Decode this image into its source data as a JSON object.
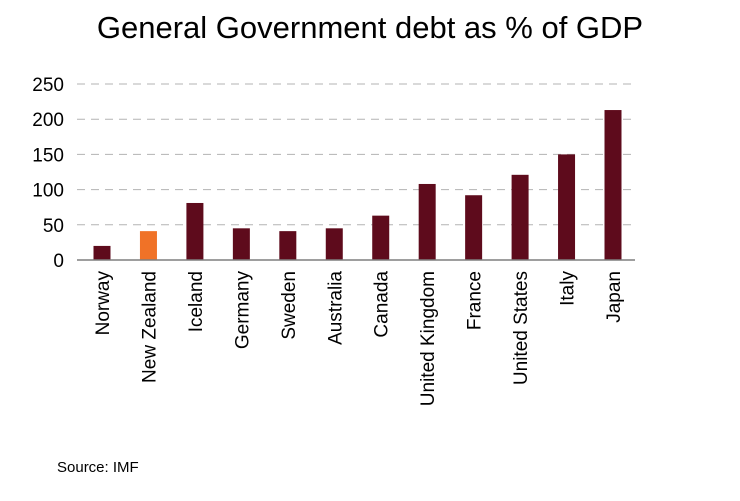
{
  "chart_data": {
    "type": "bar",
    "title": "General Government debt as % of GDP",
    "xlabel": "",
    "ylabel": "",
    "categories": [
      "Norway",
      "New Zealand",
      "Iceland",
      "Germany",
      "Sweden",
      "Australia",
      "Canada",
      "United Kingdom",
      "France",
      "United States",
      "Italy",
      "Japan"
    ],
    "values": [
      20,
      41,
      81,
      45,
      41,
      45,
      63,
      108,
      92,
      121,
      150,
      213
    ],
    "highlight": "New Zealand",
    "ylim": [
      0,
      250
    ],
    "yticks": [
      0,
      50,
      100,
      150,
      200,
      250
    ],
    "grid": true,
    "grid_style": "dashed",
    "legend": "none",
    "colors": {
      "bar": "#5e0b1c",
      "highlight": "#f07227",
      "grid": "#b3b3b3",
      "axis": "#7f7f7f"
    }
  },
  "source": "Source: IMF"
}
